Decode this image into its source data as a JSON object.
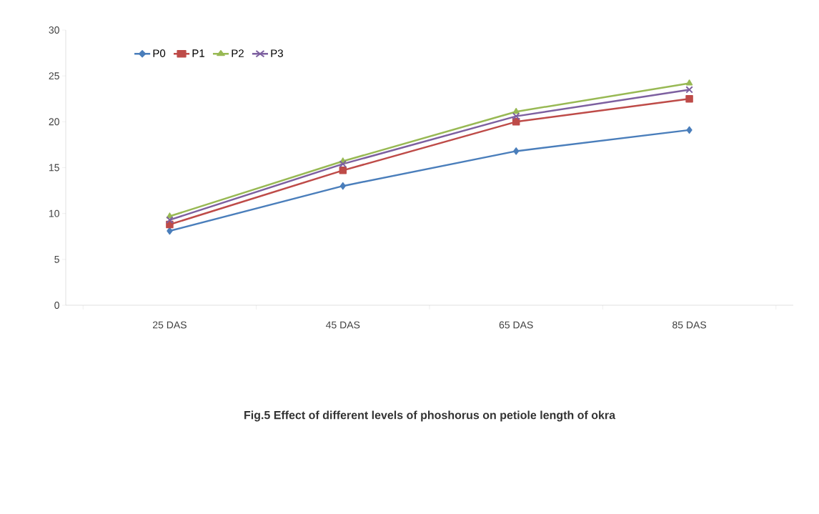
{
  "chart_data": {
    "type": "line",
    "title": "Fig.5 Effect of different levels of phoshorus on petiole length of okra",
    "categories": [
      "25 DAS",
      "45 DAS",
      "65 DAS",
      "85 DAS"
    ],
    "series": [
      {
        "name": "P0",
        "color": "#4a7ebb",
        "marker": "diamond",
        "values": [
          8.1,
          13.0,
          16.8,
          19.1
        ]
      },
      {
        "name": "P1",
        "color": "#be4b48",
        "marker": "square",
        "values": [
          8.8,
          14.7,
          20.0,
          22.5
        ]
      },
      {
        "name": "P2",
        "color": "#98b954",
        "marker": "triangle",
        "values": [
          9.7,
          15.7,
          21.1,
          24.2
        ]
      },
      {
        "name": "P3",
        "color": "#7d60a0",
        "marker": "cross",
        "values": [
          9.3,
          15.4,
          20.6,
          23.5
        ]
      }
    ],
    "ylim": [
      0,
      30
    ],
    "yticks": [
      0,
      5,
      10,
      15,
      20,
      25,
      30
    ],
    "grid": false,
    "legend": "top left"
  }
}
